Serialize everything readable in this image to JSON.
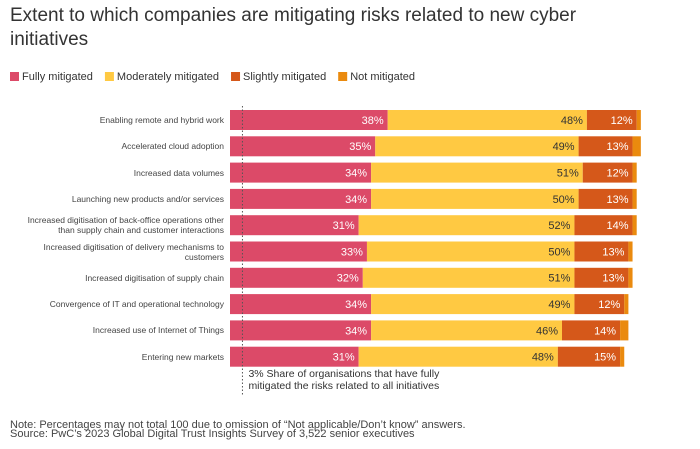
{
  "chart_data": {
    "type": "stacked-bar-horizontal",
    "title": "Extent to which companies are mitigating risks related to new cyber initiatives",
    "categories": [
      "Enabling remote and hybrid work",
      "Accelerated cloud adoption",
      "Increased data volumes",
      "Launching new products and/or services",
      "Increased digitisation of back-office operations other than supply chain and customer interactions",
      "Increased digitisation of delivery mechanisms to customers",
      "Increased digitisation of supply chain",
      "Convergence of IT and operational technology",
      "Increased use of Internet of Things",
      "Entering new markets"
    ],
    "series": [
      {
        "name": "Fully mitigated",
        "color": "#dc4a68",
        "values": [
          38,
          35,
          34,
          34,
          31,
          33,
          32,
          34,
          34,
          31
        ],
        "value_labels": [
          "38%",
          "35%",
          "34%",
          "34%",
          "31%",
          "33%",
          "32%",
          "34%",
          "34%",
          "31%"
        ]
      },
      {
        "name": "Moderately mitigated",
        "color": "#ffc942",
        "values": [
          48,
          49,
          51,
          50,
          52,
          50,
          51,
          49,
          46,
          48
        ],
        "value_labels": [
          "48%",
          "49%",
          "51%",
          "50%",
          "52%",
          "50%",
          "51%",
          "49%",
          "46%",
          "48%"
        ]
      },
      {
        "name": "Slightly mitigated",
        "color": "#d5581a",
        "values": [
          12,
          13,
          12,
          13,
          14,
          13,
          13,
          12,
          14,
          15
        ],
        "value_labels": [
          "12%",
          "13%",
          "12%",
          "13%",
          "14%",
          "13%",
          "13%",
          "12%",
          "14%",
          "15%"
        ]
      },
      {
        "name": "Not mitigated",
        "color": "#ea8a0e",
        "values": [
          1,
          2,
          1,
          1,
          1,
          1,
          1,
          1,
          2,
          1
        ]
      }
    ],
    "annotation": {
      "value": 3,
      "label": "3%",
      "text": "Share of organisations that have fully mitigated the risks related to all initiatives"
    },
    "notes": [
      "Note: Percentages may not total 100 due to omission of “Not applicable/Don’t know” answers.",
      "Source: PwC’s 2023 Global Digital Trust Insights Survey of 3,522 senior executives"
    ]
  }
}
